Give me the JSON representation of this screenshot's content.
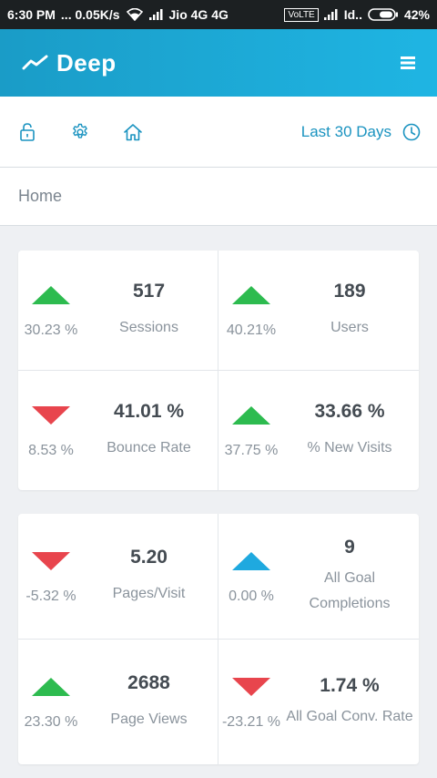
{
  "status_bar": {
    "time": "6:30 PM",
    "speed": "... 0.05K/s",
    "carrier1": "Jio 4G 4G",
    "volte": "VoLTE",
    "carrier2": "Id..",
    "battery": "42%"
  },
  "app_bar": {
    "title": "Deep",
    "logo_icon": "trend-line-icon",
    "menu_icon": "hamburger-menu-icon"
  },
  "toolbar": {
    "icons": [
      "lock-icon",
      "gear-icon",
      "home-icon"
    ],
    "date_range": "Last 30 Days",
    "date_icon": "clock-icon"
  },
  "breadcrumb": "Home",
  "colors": {
    "accent": "#1fb5e3",
    "up": "#2dbb4f",
    "down": "#e8454d",
    "neutral": "#1fa9df"
  },
  "cards": [
    {
      "metrics": [
        {
          "trend": "up",
          "change": "30.23 %",
          "value": "517",
          "label": "Sessions"
        },
        {
          "trend": "up",
          "change": "40.21%",
          "value": "189",
          "label": "Users"
        },
        {
          "trend": "down",
          "change": "8.53 %",
          "value": "41.01 %",
          "label": "Bounce Rate"
        },
        {
          "trend": "up",
          "change": "37.75 %",
          "value": "33.66 %",
          "label": "% New Visits"
        }
      ]
    },
    {
      "metrics": [
        {
          "trend": "down",
          "change": "-5.32 %",
          "value": "5.20",
          "label": "Pages/Visit"
        },
        {
          "trend": "neutral",
          "change": "0.00 %",
          "value": "9",
          "label": "All Goal Completions"
        },
        {
          "trend": "up",
          "change": "23.30 %",
          "value": "2688",
          "label": "Page Views"
        },
        {
          "trend": "down",
          "change": "-23.21 %",
          "value": "1.74 %",
          "label": "All Goal Conv. Rate"
        }
      ]
    }
  ]
}
